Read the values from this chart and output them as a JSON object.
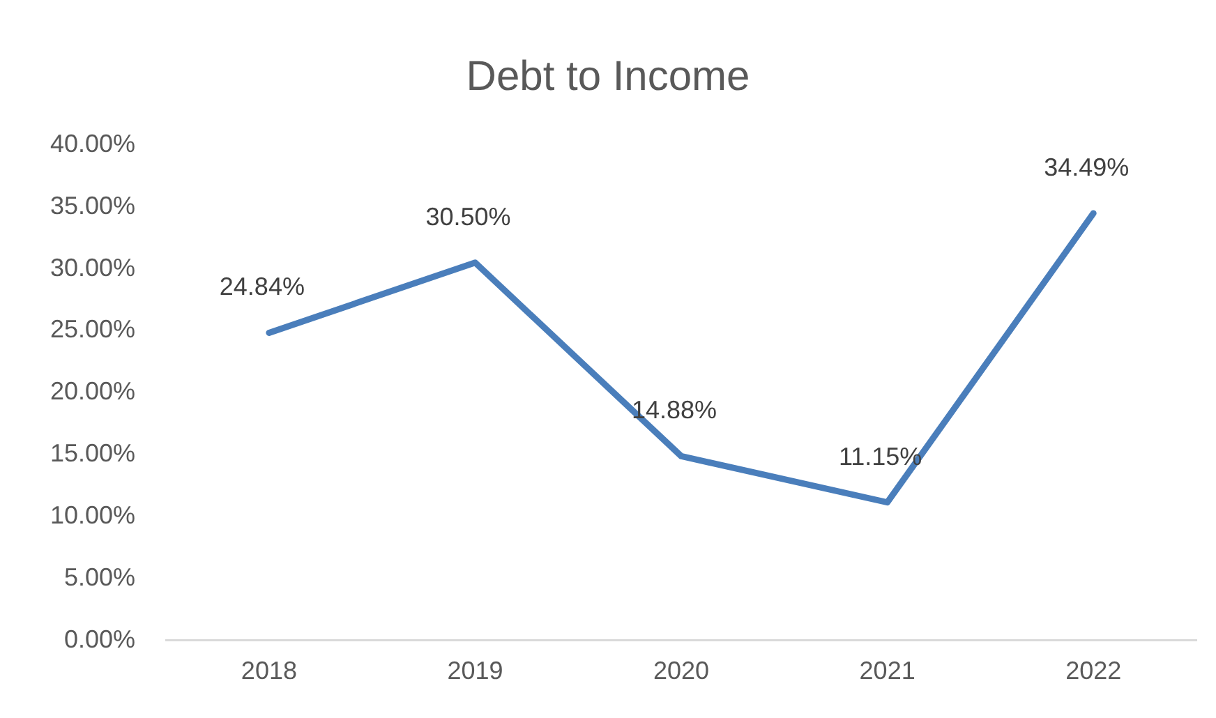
{
  "chart_data": {
    "type": "line",
    "title": "Debt to Income",
    "categories": [
      "2018",
      "2019",
      "2020",
      "2021",
      "2022"
    ],
    "series": [
      {
        "color": "#4a7ebb",
        "values": [
          24.84,
          30.5,
          14.88,
          11.15,
          34.49
        ],
        "value_labels": [
          "24.84%",
          "30.50%",
          "14.88%",
          "11.15%",
          "34.49%"
        ]
      }
    ],
    "ylim": [
      0,
      40
    ],
    "yticks": [
      {
        "value": 0,
        "label": "0.00%"
      },
      {
        "value": 5,
        "label": "5.00%"
      },
      {
        "value": 10,
        "label": "10.00%"
      },
      {
        "value": 15,
        "label": "15.00%"
      },
      {
        "value": 20,
        "label": "20.00%"
      },
      {
        "value": 25,
        "label": "25.00%"
      },
      {
        "value": 30,
        "label": "30.00%"
      },
      {
        "value": 35,
        "label": "35.00%"
      },
      {
        "value": 40,
        "label": "40.00%"
      }
    ],
    "grid": false,
    "legend": false,
    "marker": "none",
    "line_style": "solid"
  }
}
